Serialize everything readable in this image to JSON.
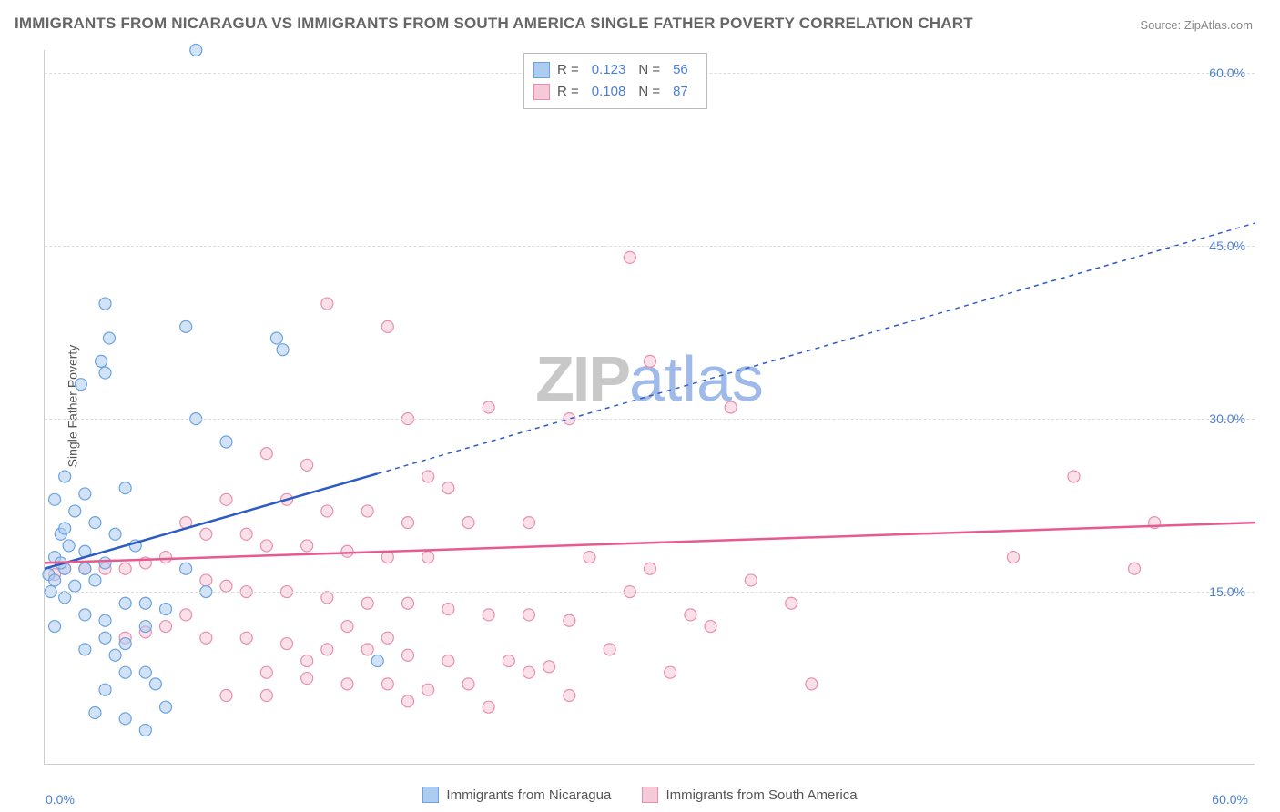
{
  "title": "IMMIGRANTS FROM NICARAGUA VS IMMIGRANTS FROM SOUTH AMERICA SINGLE FATHER POVERTY CORRELATION CHART",
  "source_label": "Source:",
  "source_name": "ZipAtlas.com",
  "ylabel": "Single Father Poverty",
  "watermark_z": "ZIP",
  "watermark_a": "atlas",
  "chart": {
    "type": "scatter",
    "xlim": [
      0,
      60
    ],
    "ylim": [
      0,
      62
    ],
    "gridlines_y": [
      15,
      30,
      45,
      60
    ],
    "ytick_labels": [
      "15.0%",
      "30.0%",
      "45.0%",
      "60.0%"
    ],
    "xtick_left": "0.0%",
    "xtick_right": "60.0%",
    "background_color": "#ffffff",
    "grid_color": "#dddddd",
    "axis_color": "#cccccc",
    "tick_label_color": "#4a7fd8",
    "marker_radius": 6.5,
    "marker_opacity": 0.55,
    "line_width": 2.5,
    "dash_pattern": "5,5",
    "series": [
      {
        "id": "nicaragua",
        "label": "Immigrants from Nicaragua",
        "color_fill": "#aeccf0",
        "color_stroke": "#6aa3e0",
        "line_color": "#2e5cc5",
        "R": "0.123",
        "N": "56",
        "trend": {
          "x1": 0,
          "y1": 17,
          "x2": 60,
          "y2": 47,
          "solid_until_x": 16.5
        },
        "points": [
          [
            7.5,
            62
          ],
          [
            3,
            40
          ],
          [
            3.2,
            37
          ],
          [
            2.8,
            35
          ],
          [
            3,
            34
          ],
          [
            1.8,
            33
          ],
          [
            7,
            38
          ],
          [
            11.5,
            37
          ],
          [
            11.8,
            36
          ],
          [
            7.5,
            30
          ],
          [
            9,
            28
          ],
          [
            1,
            25
          ],
          [
            0.5,
            23
          ],
          [
            2,
            23.5
          ],
          [
            4,
            24
          ],
          [
            1.5,
            22
          ],
          [
            2.5,
            21
          ],
          [
            0.8,
            20
          ],
          [
            1,
            20.5
          ],
          [
            3.5,
            20
          ],
          [
            4.5,
            19
          ],
          [
            1.2,
            19
          ],
          [
            2,
            18.5
          ],
          [
            0.5,
            18
          ],
          [
            1,
            17
          ],
          [
            0.2,
            16.5
          ],
          [
            0.8,
            17.5
          ],
          [
            2,
            17
          ],
          [
            3,
            17.5
          ],
          [
            0.5,
            16
          ],
          [
            1.5,
            15.5
          ],
          [
            2.5,
            16
          ],
          [
            0.3,
            15
          ],
          [
            1,
            14.5
          ],
          [
            4,
            14
          ],
          [
            5,
            14
          ],
          [
            6,
            13.5
          ],
          [
            2,
            13
          ],
          [
            3,
            12.5
          ],
          [
            0.5,
            12
          ],
          [
            5,
            12
          ],
          [
            3,
            11
          ],
          [
            4,
            10.5
          ],
          [
            2,
            10
          ],
          [
            3.5,
            9.5
          ],
          [
            4,
            8
          ],
          [
            5,
            8
          ],
          [
            5.5,
            7
          ],
          [
            3,
            6.5
          ],
          [
            6,
            5
          ],
          [
            4,
            4
          ],
          [
            5,
            3
          ],
          [
            2.5,
            4.5
          ],
          [
            16.5,
            9
          ],
          [
            8,
            15
          ],
          [
            7,
            17
          ]
        ]
      },
      {
        "id": "south_america",
        "label": "Immigrants from South America",
        "color_fill": "#f5c9d7",
        "color_stroke": "#e88fb0",
        "line_color": "#e85a8f",
        "R": "0.108",
        "N": "87",
        "trend": {
          "x1": 0,
          "y1": 17.5,
          "x2": 60,
          "y2": 21,
          "solid_until_x": 60
        },
        "points": [
          [
            29,
            44
          ],
          [
            14,
            40
          ],
          [
            17,
            38
          ],
          [
            30,
            35
          ],
          [
            18,
            30
          ],
          [
            22,
            31
          ],
          [
            26,
            30
          ],
          [
            34,
            31
          ],
          [
            11,
            27
          ],
          [
            13,
            26
          ],
          [
            19,
            25
          ],
          [
            20,
            24
          ],
          [
            51,
            25
          ],
          [
            9,
            23
          ],
          [
            12,
            23
          ],
          [
            14,
            22
          ],
          [
            16,
            22
          ],
          [
            18,
            21
          ],
          [
            21,
            21
          ],
          [
            24,
            21
          ],
          [
            7,
            21
          ],
          [
            8,
            20
          ],
          [
            10,
            20
          ],
          [
            11,
            19
          ],
          [
            13,
            19
          ],
          [
            15,
            18.5
          ],
          [
            17,
            18
          ],
          [
            19,
            18
          ],
          [
            27,
            18
          ],
          [
            6,
            18
          ],
          [
            5,
            17.5
          ],
          [
            4,
            17
          ],
          [
            3,
            17
          ],
          [
            2,
            17
          ],
          [
            1,
            17
          ],
          [
            0.5,
            16.5
          ],
          [
            8,
            16
          ],
          [
            9,
            15.5
          ],
          [
            10,
            15
          ],
          [
            12,
            15
          ],
          [
            14,
            14.5
          ],
          [
            16,
            14
          ],
          [
            18,
            14
          ],
          [
            20,
            13.5
          ],
          [
            22,
            13
          ],
          [
            24,
            13
          ],
          [
            26,
            12.5
          ],
          [
            7,
            13
          ],
          [
            6,
            12
          ],
          [
            5,
            11.5
          ],
          [
            4,
            11
          ],
          [
            8,
            11
          ],
          [
            10,
            11
          ],
          [
            12,
            10.5
          ],
          [
            14,
            10
          ],
          [
            16,
            10
          ],
          [
            18,
            9.5
          ],
          [
            20,
            9
          ],
          [
            23,
            9
          ],
          [
            25,
            8.5
          ],
          [
            11,
            8
          ],
          [
            13,
            7.5
          ],
          [
            15,
            7
          ],
          [
            17,
            7
          ],
          [
            19,
            6.5
          ],
          [
            9,
            6
          ],
          [
            26,
            6
          ],
          [
            31,
            8
          ],
          [
            33,
            12
          ],
          [
            35,
            16
          ],
          [
            38,
            7
          ],
          [
            18,
            5.5
          ],
          [
            22,
            5
          ],
          [
            48,
            18
          ],
          [
            54,
            17
          ],
          [
            55,
            21
          ],
          [
            37,
            14
          ],
          [
            29,
            15
          ],
          [
            30,
            17
          ],
          [
            32,
            13
          ],
          [
            28,
            10
          ],
          [
            24,
            8
          ],
          [
            21,
            7
          ],
          [
            15,
            12
          ],
          [
            17,
            11
          ],
          [
            13,
            9
          ],
          [
            11,
            6
          ]
        ]
      }
    ]
  },
  "stats_box": {
    "r_label": "R  =",
    "n_label": "N  ="
  }
}
